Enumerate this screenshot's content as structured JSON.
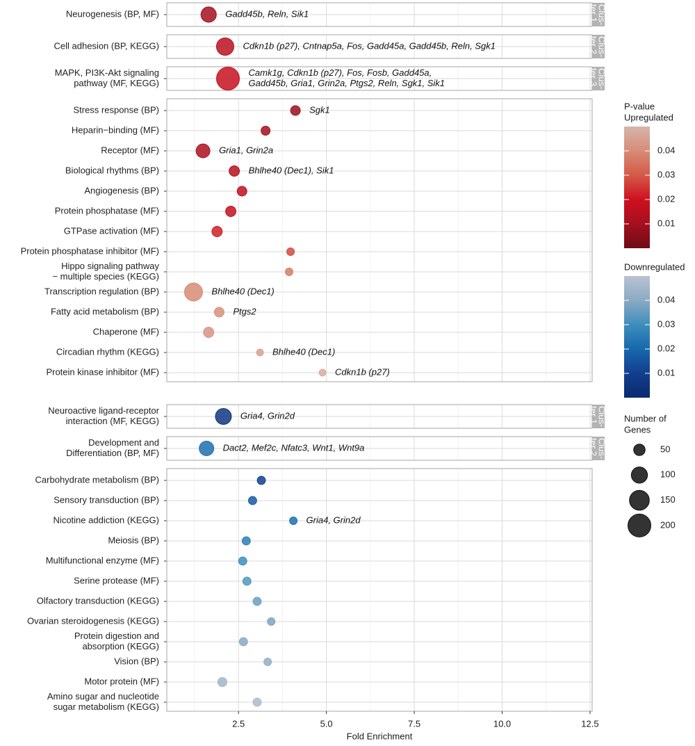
{
  "chart_data": {
    "type": "dot",
    "x_label": "Fold Enrichment",
    "xlim": [
      0.46,
      12.56
    ],
    "xticks": [
      2.5,
      {
        "value": 5,
        "label": "5.0"
      },
      7.5,
      {
        "value": 10,
        "label": "10.0"
      },
      12.5
    ],
    "xminor": [
      1.25,
      3.75,
      6.25,
      8.75,
      11.25
    ],
    "grid": true,
    "color_title": "P-value",
    "size_title": [
      "Number of",
      "Genes"
    ],
    "size_legend": [
      50,
      100,
      150,
      200
    ],
    "groups": [
      {
        "name": "Upregulated",
        "colors": [
          "#6e0b14",
          "#a5101f",
          "#cf1020",
          "#d45a48",
          "#d68c77",
          "#d7b5ab"
        ],
        "plim": [
          0,
          0.05
        ],
        "pticks": [
          0.01,
          0.02,
          0.03,
          0.04
        ],
        "panels": [
          {
            "strip": [
              "Clus-",
              "ter 1"
            ],
            "rows": [
              {
                "label": "Neurogenesis (BP, MF)",
                "fold": 1.65,
                "p": 0.01,
                "genes": 90,
                "gene_text": [
                  "Gadd45b, Reln, Sik1"
                ]
              }
            ]
          },
          {
            "strip": [
              "Clus-",
              "ter 2"
            ],
            "rows": [
              {
                "label": "Cell adhesion (BP, KEGG)",
                "fold": 2.12,
                "p": 0.015,
                "genes": 115,
                "gene_text": [
                  "Cdkn1b (p27), Cntnap5a, Fos, Gadd45a, Gadd45b, Reln, Sgk1"
                ]
              }
            ]
          },
          {
            "strip": [
              "Clus-",
              "ter 3"
            ],
            "rows": [
              {
                "label": [
                  "MAPK, PI3K-Akt signaling",
                  "pathway (MF, KEGG)"
                ],
                "fold": 2.2,
                "p": 0.018,
                "genes": 200,
                "gene_text": [
                  "Camk1g, Cdkn1b (p27), Fos, Fosb, Gadd45a,",
                  "Gadd45b, Gria1, Grin2a, Ptgs2, Reln, Sgk1, Sik1"
                ]
              }
            ]
          },
          {
            "rows": [
              {
                "label": "Stress response (BP)",
                "fold": 4.12,
                "p": 0.008,
                "genes": 36,
                "gene_text": [
                  "Sgk1"
                ]
              },
              {
                "label": "Heparin−binding (MF)",
                "fold": 3.27,
                "p": 0.01,
                "genes": 31
              },
              {
                "label": "Receptor (MF)",
                "fold": 1.49,
                "p": 0.012,
                "genes": 73,
                "gene_text": [
                  "Gria1, Grin2a"
                ]
              },
              {
                "label": "Biological rhythms (BP)",
                "fold": 2.38,
                "p": 0.014,
                "genes": 41,
                "gene_text": [
                  "Bhlhe40 (Dec1), Sik1"
                ]
              },
              {
                "label": "Angiogenesis (BP)",
                "fold": 2.6,
                "p": 0.016,
                "genes": 36
              },
              {
                "label": "Protein phosphatase (MF)",
                "fold": 2.28,
                "p": 0.017,
                "genes": 41
              },
              {
                "label": "GTPase activation (MF)",
                "fold": 1.89,
                "p": 0.022,
                "genes": 41
              },
              {
                "label": "Protein phosphatase inhibitor (MF)",
                "fold": 3.98,
                "p": 0.028,
                "genes": 22
              },
              {
                "label": [
                  "Hippo signaling pathway",
                  "− multiple species (KEGG)"
                ],
                "fold": 3.94,
                "p": 0.037,
                "genes": 22
              },
              {
                "label": "Transcription regulation (BP)",
                "fold": 1.22,
                "p": 0.04,
                "genes": 124,
                "gene_text": [
                  "Bhlhe40 (Dec1)"
                ]
              },
              {
                "label": "Fatty acid metabolism (BP)",
                "fold": 1.95,
                "p": 0.041,
                "genes": 36,
                "gene_text": [
                  "Ptgs2"
                ]
              },
              {
                "label": "Chaperone (MF)",
                "fold": 1.65,
                "p": 0.042,
                "genes": 41
              },
              {
                "label": "Circadian rhythm (KEGG)",
                "fold": 3.11,
                "p": 0.045,
                "genes": 18,
                "gene_text": [
                  "Bhlhe40 (Dec1)"
                ]
              },
              {
                "label": "Protein kinase inhibitor (MF)",
                "fold": 4.89,
                "p": 0.048,
                "genes": 18,
                "gene_text": [
                  "Cdkn1b (p27)"
                ]
              }
            ]
          }
        ]
      },
      {
        "name": "Downregulated",
        "colors": [
          "#0a2a6e",
          "#123f8e",
          "#1768ad",
          "#3e8ebc",
          "#8aaac4",
          "#b9c2d2"
        ],
        "plim": [
          0,
          0.05
        ],
        "pticks": [
          0.01,
          0.02,
          0.03,
          0.04
        ],
        "panels": [
          {
            "strip": [
              "Clus-",
              "ter 1"
            ],
            "rows": [
              {
                "label": [
                  "Neuroactive ligand-receptor",
                  "interaction (MF, KEGG)"
                ],
                "fold": 2.07,
                "p": 0.006,
                "genes": 97,
                "gene_text": [
                  "Gria4, Grin2d"
                ]
              }
            ]
          },
          {
            "strip": [
              "Clus-",
              "ter 2"
            ],
            "rows": [
              {
                "label": [
                  "Development and",
                  "Differentiation (BP, MF)"
                ],
                "fold": 1.59,
                "p": 0.022,
                "genes": 81,
                "gene_text": [
                  "Dact2, Mef2c, Nfatc3, Wnt1, Wnt9a"
                ]
              }
            ]
          },
          {
            "rows": [
              {
                "label": "Carbohydrate metabolism (BP)",
                "fold": 3.15,
                "p": 0.01,
                "genes": 26
              },
              {
                "label": "Sensory transduction (BP)",
                "fold": 2.9,
                "p": 0.017,
                "genes": 26
              },
              {
                "label": "Nicotine addiction (KEGG)",
                "fold": 4.06,
                "p": 0.022,
                "genes": 22,
                "gene_text": [
                  "Gria4, Grin2d"
                ]
              },
              {
                "label": "Meiosis (BP)",
                "fold": 2.72,
                "p": 0.026,
                "genes": 26
              },
              {
                "label": "Multifunctional enzyme (MF)",
                "fold": 2.62,
                "p": 0.03,
                "genes": 26
              },
              {
                "label": "Serine protease (MF)",
                "fold": 2.74,
                "p": 0.033,
                "genes": 26
              },
              {
                "label": "Olfactory transduction (KEGG)",
                "fold": 3.03,
                "p": 0.036,
                "genes": 26
              },
              {
                "label": "Ovarian steroidogenesis (KEGG)",
                "fold": 3.43,
                "p": 0.038,
                "genes": 22
              },
              {
                "label": [
                  "Protein digestion and",
                  "absorption (KEGG)"
                ],
                "fold": 2.64,
                "p": 0.04,
                "genes": 26
              },
              {
                "label": "Vision (BP)",
                "fold": 3.33,
                "p": 0.042,
                "genes": 22
              },
              {
                "label": "Motor protein (MF)",
                "fold": 2.04,
                "p": 0.045,
                "genes": 31
              },
              {
                "label": [
                  "Amino sugar and nucleotide",
                  "sugar metabolism (KEGG)"
                ],
                "fold": 3.03,
                "p": 0.047,
                "genes": 26
              }
            ]
          }
        ]
      }
    ]
  }
}
